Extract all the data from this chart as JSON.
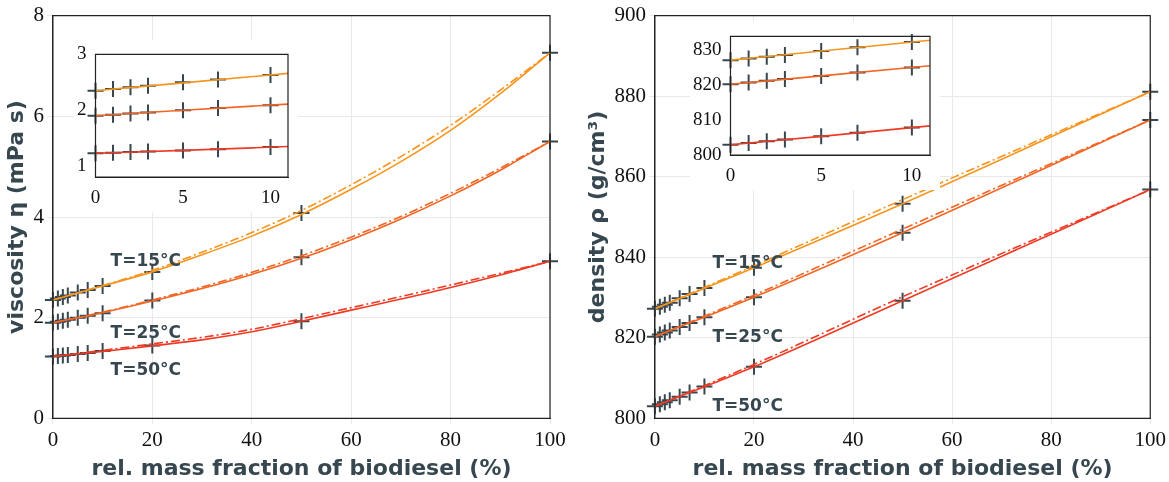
{
  "chart_data": [
    {
      "type": "scatter",
      "xlabel": "rel. mass fraction of biodiesel (%)",
      "ylabel": "viscosity η (mPa s)",
      "xlim": [
        0,
        100
      ],
      "xticks": [
        0,
        20,
        40,
        60,
        80,
        100
      ],
      "ylim": [
        0,
        8
      ],
      "yticks": [
        0,
        2,
        4,
        6,
        8
      ],
      "grid": true,
      "x": [
        0,
        1,
        2,
        3,
        5,
        7,
        10,
        20,
        50,
        100
      ],
      "series": [
        {
          "type": "line",
          "color": "#f7941d",
          "line_style": "solid",
          "x": [
            0,
            10,
            20,
            30,
            40,
            50,
            60,
            70,
            80,
            90,
            100
          ],
          "values": [
            2.35,
            2.63,
            2.91,
            3.25,
            3.62,
            4.05,
            4.55,
            5.1,
            5.72,
            6.45,
            7.26
          ]
        },
        {
          "type": "line",
          "color": "#f7941d",
          "line_style": "dashed",
          "x": [
            0,
            10,
            20,
            30,
            40,
            50,
            60,
            70,
            80,
            90,
            100
          ],
          "values": [
            2.35,
            2.64,
            2.94,
            3.3,
            3.69,
            4.13,
            4.64,
            5.2,
            5.82,
            6.52,
            7.26
          ]
        },
        {
          "type": "line",
          "color": "#f26522",
          "line_style": "solid",
          "x": [
            0,
            10,
            20,
            30,
            40,
            50,
            60,
            70,
            80,
            90,
            100
          ],
          "values": [
            1.9,
            2.1,
            2.33,
            2.58,
            2.86,
            3.18,
            3.55,
            3.96,
            4.42,
            4.93,
            5.5
          ]
        },
        {
          "type": "line",
          "color": "#f26522",
          "line_style": "dashed",
          "x": [
            0,
            10,
            20,
            30,
            40,
            50,
            60,
            70,
            80,
            90,
            100
          ],
          "values": [
            1.9,
            2.11,
            2.35,
            2.61,
            2.9,
            3.23,
            3.6,
            4.01,
            4.47,
            4.97,
            5.5
          ]
        },
        {
          "type": "line",
          "color": "#ef3b24",
          "line_style": "solid",
          "x": [
            0,
            10,
            20,
            30,
            40,
            50,
            60,
            70,
            80,
            90,
            100
          ],
          "values": [
            1.23,
            1.33,
            1.44,
            1.56,
            1.72,
            1.93,
            2.15,
            2.37,
            2.6,
            2.85,
            3.12
          ]
        },
        {
          "type": "line",
          "color": "#ef3b24",
          "line_style": "dashed",
          "x": [
            0,
            10,
            20,
            30,
            40,
            50,
            60,
            70,
            80,
            90,
            100
          ],
          "values": [
            1.23,
            1.35,
            1.48,
            1.61,
            1.77,
            1.98,
            2.2,
            2.42,
            2.65,
            2.88,
            3.12
          ]
        },
        {
          "color": "#37474f",
          "marker": "cross",
          "values": [
            2.35,
            2.38,
            2.41,
            2.44,
            2.5,
            2.55,
            2.63,
            2.91,
            4.08,
            7.26
          ]
        },
        {
          "color": "#37474f",
          "marker": "cross",
          "values": [
            1.9,
            1.92,
            1.94,
            1.96,
            2.0,
            2.04,
            2.09,
            2.34,
            3.2,
            5.5
          ]
        },
        {
          "color": "#37474f",
          "marker": "cross",
          "values": [
            1.23,
            1.24,
            1.25,
            1.26,
            1.28,
            1.3,
            1.34,
            1.45,
            1.93,
            3.12
          ]
        }
      ],
      "annotations": [
        "T=15°C",
        "T=25°C",
        "T=50°C"
      ]
    },
    {
      "type": "scatter",
      "xlim": [
        0,
        11
      ],
      "xticks": [
        0,
        5,
        10
      ],
      "ylim": [
        0.8,
        3
      ],
      "yticks": [
        1,
        2,
        3
      ],
      "grid": false,
      "x": [
        0,
        1,
        2,
        3,
        5,
        7,
        10
      ],
      "series": [
        {
          "type": "line",
          "color": "#f7941d",
          "line_style": "solid",
          "x": [
            0,
            5,
            11
          ],
          "values": [
            2.35,
            2.49,
            2.66
          ]
        },
        {
          "type": "line",
          "color": "#f26522",
          "line_style": "solid",
          "x": [
            0,
            5,
            11
          ],
          "values": [
            1.9,
            2.0,
            2.11
          ]
        },
        {
          "type": "line",
          "color": "#ef3b24",
          "line_style": "solid",
          "x": [
            0,
            5,
            11
          ],
          "values": [
            1.23,
            1.28,
            1.35
          ]
        },
        {
          "color": "#37474f",
          "marker": "cross",
          "values": [
            2.35,
            2.38,
            2.41,
            2.44,
            2.5,
            2.55,
            2.63
          ]
        },
        {
          "color": "#37474f",
          "marker": "cross",
          "values": [
            1.9,
            1.92,
            1.94,
            1.96,
            2.0,
            2.04,
            2.09
          ]
        },
        {
          "color": "#37474f",
          "marker": "cross",
          "values": [
            1.23,
            1.24,
            1.25,
            1.26,
            1.28,
            1.3,
            1.34
          ]
        }
      ]
    },
    {
      "type": "scatter",
      "xlabel": "rel. mass fraction of biodiesel (%)",
      "ylabel": "density ρ (g/cm³)",
      "xlim": [
        0,
        100
      ],
      "xticks": [
        0,
        20,
        40,
        60,
        80,
        100
      ],
      "ylim": [
        800,
        900
      ],
      "yticks": [
        800,
        820,
        840,
        860,
        880,
        900
      ],
      "grid": true,
      "x": [
        0,
        1,
        2,
        3,
        5,
        7,
        10,
        20,
        50,
        100
      ],
      "series": [
        {
          "type": "line",
          "color": "#f7941d",
          "line_style": "solid",
          "x": [
            0,
            20,
            50,
            100
          ],
          "values": [
            827.2,
            837.4,
            853.3,
            881.1
          ]
        },
        {
          "type": "line",
          "color": "#f7941d",
          "line_style": "dashed",
          "x": [
            0,
            20,
            50,
            100
          ],
          "values": [
            827.2,
            837.9,
            854.3,
            881.1
          ]
        },
        {
          "type": "line",
          "color": "#f26522",
          "line_style": "solid",
          "x": [
            0,
            20,
            50,
            100
          ],
          "values": [
            820.3,
            830.1,
            846.1,
            874.1
          ]
        },
        {
          "type": "line",
          "color": "#f26522",
          "line_style": "dashed",
          "x": [
            0,
            20,
            50,
            100
          ],
          "values": [
            820.3,
            830.6,
            847,
            874.1
          ]
        },
        {
          "type": "line",
          "color": "#ef3b24",
          "line_style": "solid",
          "x": [
            0,
            20,
            50,
            100
          ],
          "values": [
            803,
            812.8,
            829.2,
            856.8
          ]
        },
        {
          "type": "line",
          "color": "#ef3b24",
          "line_style": "dashed",
          "x": [
            0,
            20,
            50,
            100
          ],
          "values": [
            803,
            813.4,
            830.2,
            856.8
          ]
        },
        {
          "color": "#37474f",
          "marker": "cross",
          "values": [
            827.2,
            827.7,
            828.2,
            828.7,
            829.8,
            830.9,
            832.4,
            837.4,
            853.3,
            881.1
          ]
        },
        {
          "color": "#37474f",
          "marker": "cross",
          "values": [
            820.3,
            820.8,
            821.3,
            821.8,
            822.7,
            823.7,
            825.1,
            830.1,
            846.1,
            874.1
          ]
        },
        {
          "color": "#37474f",
          "marker": "cross",
          "values": [
            803,
            803.5,
            804,
            804.5,
            805.4,
            806.4,
            807.9,
            812.8,
            829.2,
            856.8
          ]
        }
      ],
      "annotations": [
        "T=15°C",
        "T=25°C",
        "T=50°C"
      ]
    },
    {
      "type": "scatter",
      "xlim": [
        0,
        11
      ],
      "xticks": [
        0,
        5,
        10
      ],
      "ylim": [
        800,
        834
      ],
      "yticks": [
        800,
        810,
        820,
        830
      ],
      "grid": false,
      "x": [
        0,
        1,
        2,
        3,
        5,
        7,
        10
      ],
      "series": [
        {
          "type": "line",
          "color": "#f7941d",
          "line_style": "solid",
          "x": [
            0,
            5,
            11
          ],
          "values": [
            827.2,
            829.8,
            832.9
          ]
        },
        {
          "type": "line",
          "color": "#f26522",
          "line_style": "solid",
          "x": [
            0,
            5,
            11
          ],
          "values": [
            820.3,
            822.7,
            825.6
          ]
        },
        {
          "type": "line",
          "color": "#ef3b24",
          "line_style": "solid",
          "x": [
            0,
            5,
            11
          ],
          "values": [
            803,
            805.4,
            808.4
          ]
        },
        {
          "color": "#37474f",
          "marker": "cross",
          "values": [
            827.2,
            827.7,
            828.2,
            828.7,
            829.8,
            830.9,
            832.4
          ]
        },
        {
          "color": "#37474f",
          "marker": "cross",
          "values": [
            820.3,
            820.8,
            821.3,
            821.8,
            822.7,
            823.7,
            825.1
          ]
        },
        {
          "color": "#37474f",
          "marker": "cross",
          "values": [
            803,
            803.5,
            804,
            804.5,
            805.4,
            806.4,
            807.9
          ]
        }
      ]
    }
  ]
}
